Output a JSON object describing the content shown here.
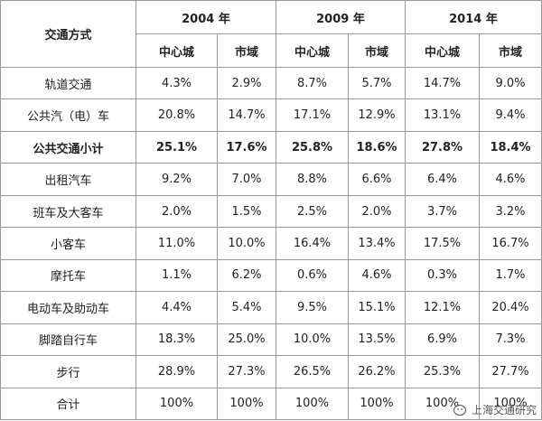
{
  "table": {
    "header": {
      "title": "交通方式",
      "years": [
        "2004 年",
        "2009 年",
        "2014 年"
      ],
      "subheaders": [
        "中心城",
        "市域",
        "中心城",
        "市域",
        "中心城",
        "市域"
      ]
    },
    "rows": [
      [
        "轨道交通",
        "4.3%",
        "2.9%",
        "8.7%",
        "5.7%",
        "14.7%",
        "9.0%"
      ],
      [
        "公共汽（电）车",
        "20.8%",
        "14.7%",
        "17.1%",
        "12.9%",
        "13.1%",
        "9.4%"
      ],
      [
        "公共交通小计",
        "25.1%",
        "17.6%",
        "25.8%",
        "18.6%",
        "27.8%",
        "18.4%"
      ],
      [
        "出租汽车",
        "9.2%",
        "7.0%",
        "8.8%",
        "6.6%",
        "6.4%",
        "4.6%"
      ],
      [
        "班车及大客车",
        "2.0%",
        "1.5%",
        "2.5%",
        "2.0%",
        "3.7%",
        "3.2%"
      ],
      [
        "小客车",
        "11.0%",
        "10.0%",
        "16.4%",
        "13.4%",
        "17.5%",
        "16.7%"
      ],
      [
        "摩托车",
        "1.1%",
        "6.2%",
        "0.6%",
        "4.6%",
        "0.3%",
        "1.7%"
      ],
      [
        "电动车及助动车",
        "4.4%",
        "5.4%",
        "9.5%",
        "15.1%",
        "12.1%",
        "20.4%"
      ],
      [
        "脚踏自行车",
        "18.3%",
        "25.0%",
        "10.0%",
        "13.5%",
        "6.9%",
        "7.3%"
      ],
      [
        "步行",
        "28.9%",
        "27.3%",
        "26.5%",
        "26.2%",
        "25.3%",
        "27.7%"
      ],
      [
        "合计",
        "100%",
        "100%",
        "100%",
        "100%",
        "100%",
        "100%"
      ]
    ]
  },
  "watermark": "上海交通研究"
}
